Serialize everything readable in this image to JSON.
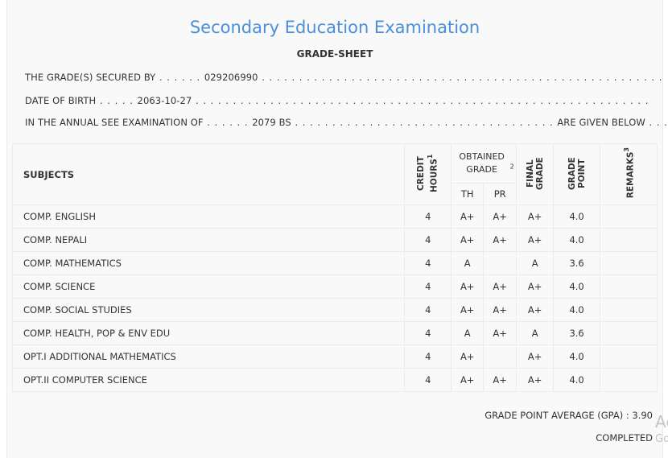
{
  "header": {
    "title": "Secondary Education Examination",
    "subtitle": "GRADE-SHEET"
  },
  "info": {
    "secured_by_label": "THE GRADE(S) SECURED BY",
    "secured_by_value": "029206990",
    "dob_label": "DATE OF BIRTH",
    "dob_value": "2063-10-27",
    "exam_label": "IN THE ANNUAL SEE EXAMINATION OF",
    "exam_value": "2079 BS",
    "exam_suffix": "ARE GIVEN BELOW"
  },
  "table": {
    "headers": {
      "subjects": "SUBJECTS",
      "credit_hours": "CREDIT HOURS",
      "credit_hours_sup": "1",
      "obtained_grade": "OBTAINED GRADE",
      "obtained_grade_sup": "2",
      "th": "TH",
      "pr": "PR",
      "final_grade": "FINAL GRADE",
      "grade_point": "GRADE POINT",
      "remarks": "REMARKS",
      "remarks_sup": "3"
    },
    "rows": [
      {
        "subject": "COMP. ENGLISH",
        "credit": "4",
        "th": "A+",
        "pr": "A+",
        "final": "A+",
        "gp": "4.0",
        "remarks": ""
      },
      {
        "subject": "COMP. NEPALI",
        "credit": "4",
        "th": "A+",
        "pr": "A+",
        "final": "A+",
        "gp": "4.0",
        "remarks": ""
      },
      {
        "subject": "COMP. MATHEMATICS",
        "credit": "4",
        "th": "A",
        "pr": "",
        "final": "A",
        "gp": "3.6",
        "remarks": ""
      },
      {
        "subject": "COMP. SCIENCE",
        "credit": "4",
        "th": "A+",
        "pr": "A+",
        "final": "A+",
        "gp": "4.0",
        "remarks": ""
      },
      {
        "subject": "COMP. SOCIAL STUDIES",
        "credit": "4",
        "th": "A+",
        "pr": "A+",
        "final": "A+",
        "gp": "4.0",
        "remarks": ""
      },
      {
        "subject": "COMP. HEALTH, POP & ENV EDU",
        "credit": "4",
        "th": "A",
        "pr": "A+",
        "final": "A",
        "gp": "3.6",
        "remarks": ""
      },
      {
        "subject": "OPT.I ADDITIONAL MATHEMATICS",
        "credit": "4",
        "th": "A+",
        "pr": "",
        "final": "A+",
        "gp": "4.0",
        "remarks": ""
      },
      {
        "subject": "OPT.II COMPUTER SCIENCE",
        "credit": "4",
        "th": "A+",
        "pr": "A+",
        "final": "A+",
        "gp": "4.0",
        "remarks": ""
      }
    ]
  },
  "footer": {
    "gpa_label": "GRADE POINT AVERAGE (GPA) :",
    "gpa_value": "3.90",
    "status": "COMPLETED"
  },
  "watermark": {
    "line1": "Ac",
    "line2": "Go"
  }
}
